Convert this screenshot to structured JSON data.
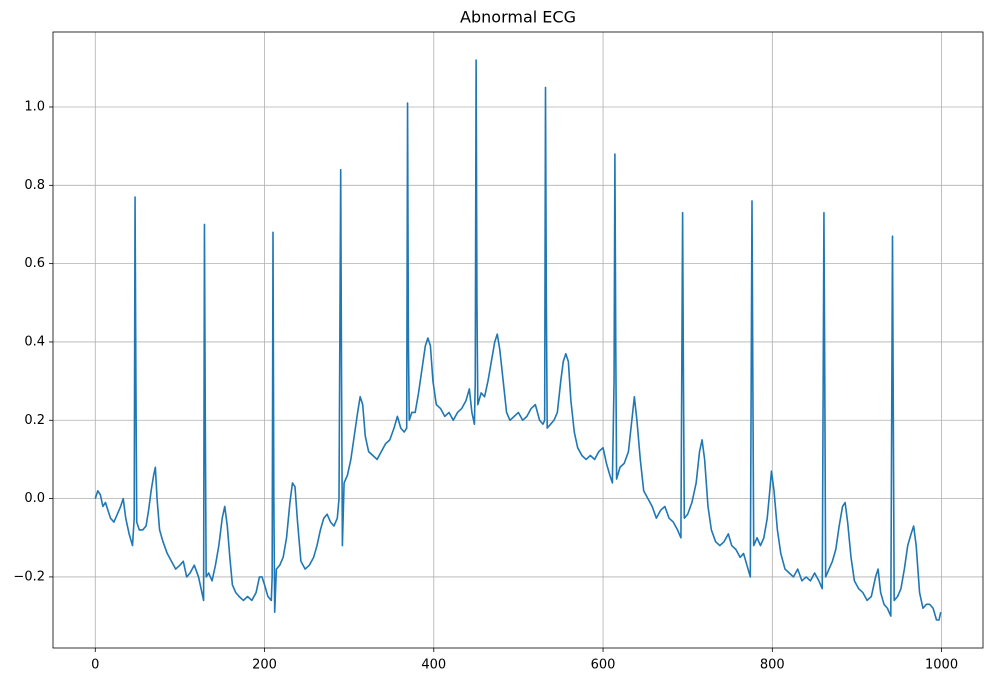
{
  "chart_data": {
    "type": "line",
    "title": "Abnormal ECG",
    "color": "#1f77b4",
    "grid": true,
    "xlim": [
      -49.95,
      1048.95
    ],
    "ylim": [
      -0.3815,
      1.1915
    ],
    "xticks": [
      0,
      200,
      400,
      600,
      800,
      1000
    ],
    "yticks": [
      {
        "value": -0.2,
        "label": "−0.2"
      },
      {
        "value": 0,
        "label": "0.0"
      },
      0.2,
      0.4,
      0.6,
      0.8,
      {
        "value": 1,
        "label": "1.0"
      }
    ],
    "x": [
      0,
      3,
      6,
      9,
      12,
      15,
      18,
      22,
      26,
      30,
      33,
      36,
      40,
      44,
      46,
      47,
      48,
      49,
      52,
      56,
      60,
      63,
      66,
      69,
      71,
      73,
      76,
      80,
      85,
      90,
      95,
      100,
      104,
      108,
      112,
      117,
      122,
      126,
      128,
      129,
      130,
      131,
      134,
      138,
      142,
      146,
      150,
      153,
      156,
      159,
      162,
      166,
      170,
      175,
      180,
      185,
      190,
      194,
      197,
      200,
      204,
      208,
      209,
      210,
      211,
      212,
      214,
      218,
      222,
      226,
      230,
      233,
      236,
      239,
      243,
      248,
      253,
      258,
      262,
      266,
      270,
      274,
      278,
      282,
      286,
      288,
      290,
      291,
      292,
      294,
      298,
      302,
      306,
      310,
      313,
      316,
      319,
      323,
      328,
      333,
      338,
      343,
      348,
      353,
      357,
      361,
      365,
      368,
      369,
      370,
      371,
      374,
      378,
      382,
      386,
      390,
      393,
      396,
      399,
      403,
      408,
      413,
      418,
      423,
      428,
      433,
      438,
      442,
      445,
      448,
      449,
      450,
      451,
      452,
      456,
      460,
      464,
      468,
      472,
      475,
      478,
      482,
      486,
      490,
      495,
      500,
      505,
      510,
      515,
      520,
      525,
      529,
      531,
      532,
      533,
      534,
      538,
      542,
      546,
      550,
      553,
      556,
      559,
      562,
      566,
      570,
      575,
      580,
      585,
      590,
      595,
      600,
      604,
      608,
      611,
      613,
      614,
      615,
      616,
      620,
      625,
      630,
      634,
      637,
      640,
      644,
      648,
      653,
      658,
      663,
      668,
      673,
      678,
      683,
      688,
      692,
      694,
      695,
      696,
      700,
      705,
      710,
      714,
      717,
      720,
      724,
      728,
      733,
      738,
      743,
      748,
      752,
      757,
      762,
      766,
      770,
      774,
      776,
      777,
      778,
      782,
      786,
      790,
      794,
      797,
      799,
      802,
      806,
      810,
      815,
      820,
      825,
      830,
      835,
      840,
      845,
      850,
      855,
      859,
      861,
      862,
      863,
      867,
      871,
      875,
      879,
      883,
      886,
      889,
      893,
      897,
      902,
      907,
      912,
      917,
      922,
      925,
      928,
      932,
      936,
      940,
      942,
      943,
      944,
      948,
      952,
      956,
      960,
      964,
      967,
      970,
      974,
      978,
      982,
      986,
      990,
      994,
      997,
      999
    ],
    "values": [
      0.0,
      0.02,
      0.01,
      -0.02,
      -0.01,
      -0.03,
      -0.05,
      -0.06,
      -0.04,
      -0.02,
      0.0,
      -0.05,
      -0.09,
      -0.12,
      -0.05,
      0.77,
      0.3,
      -0.06,
      -0.08,
      -0.08,
      -0.07,
      -0.03,
      0.02,
      0.06,
      0.08,
      0.0,
      -0.08,
      -0.11,
      -0.14,
      -0.16,
      -0.18,
      -0.17,
      -0.16,
      -0.2,
      -0.19,
      -0.17,
      -0.2,
      -0.24,
      -0.26,
      0.7,
      0.2,
      -0.2,
      -0.19,
      -0.21,
      -0.17,
      -0.12,
      -0.05,
      -0.02,
      -0.07,
      -0.15,
      -0.22,
      -0.24,
      -0.25,
      -0.26,
      -0.25,
      -0.26,
      -0.24,
      -0.2,
      -0.2,
      -0.22,
      -0.25,
      -0.26,
      -0.2,
      0.68,
      0.0,
      -0.29,
      -0.18,
      -0.17,
      -0.15,
      -0.1,
      -0.01,
      0.04,
      0.03,
      -0.06,
      -0.16,
      -0.18,
      -0.17,
      -0.15,
      -0.12,
      -0.08,
      -0.05,
      -0.04,
      -0.06,
      -0.07,
      -0.05,
      0.0,
      0.84,
      0.3,
      -0.12,
      0.04,
      0.06,
      0.1,
      0.16,
      0.22,
      0.26,
      0.24,
      0.16,
      0.12,
      0.11,
      0.1,
      0.12,
      0.14,
      0.15,
      0.18,
      0.21,
      0.18,
      0.17,
      0.18,
      1.01,
      0.4,
      0.2,
      0.22,
      0.22,
      0.27,
      0.33,
      0.39,
      0.41,
      0.39,
      0.3,
      0.24,
      0.23,
      0.21,
      0.22,
      0.2,
      0.22,
      0.23,
      0.25,
      0.28,
      0.22,
      0.19,
      0.3,
      1.12,
      0.5,
      0.24,
      0.27,
      0.26,
      0.3,
      0.35,
      0.4,
      0.42,
      0.38,
      0.3,
      0.22,
      0.2,
      0.21,
      0.22,
      0.2,
      0.21,
      0.23,
      0.24,
      0.2,
      0.19,
      0.2,
      1.05,
      0.5,
      0.18,
      0.19,
      0.2,
      0.22,
      0.3,
      0.35,
      0.37,
      0.35,
      0.25,
      0.17,
      0.13,
      0.11,
      0.1,
      0.11,
      0.1,
      0.12,
      0.13,
      0.09,
      0.06,
      0.04,
      0.3,
      0.88,
      0.4,
      0.05,
      0.08,
      0.09,
      0.12,
      0.2,
      0.26,
      0.2,
      0.1,
      0.02,
      0.0,
      -0.02,
      -0.05,
      -0.03,
      -0.02,
      -0.05,
      -0.06,
      -0.08,
      -0.1,
      0.73,
      0.3,
      -0.05,
      -0.04,
      -0.01,
      0.04,
      0.12,
      0.15,
      0.1,
      -0.02,
      -0.08,
      -0.11,
      -0.12,
      -0.11,
      -0.09,
      -0.12,
      -0.13,
      -0.15,
      -0.14,
      -0.17,
      -0.2,
      0.76,
      0.3,
      -0.12,
      -0.1,
      -0.12,
      -0.1,
      -0.05,
      0.02,
      0.07,
      0.02,
      -0.08,
      -0.14,
      -0.18,
      -0.19,
      -0.2,
      -0.18,
      -0.21,
      -0.2,
      -0.21,
      -0.19,
      -0.21,
      -0.23,
      0.73,
      0.3,
      -0.2,
      -0.18,
      -0.16,
      -0.13,
      -0.07,
      -0.02,
      -0.01,
      -0.06,
      -0.15,
      -0.21,
      -0.23,
      -0.24,
      -0.26,
      -0.25,
      -0.2,
      -0.18,
      -0.24,
      -0.27,
      -0.28,
      -0.3,
      0.67,
      0.2,
      -0.26,
      -0.25,
      -0.23,
      -0.18,
      -0.12,
      -0.09,
      -0.07,
      -0.12,
      -0.24,
      -0.28,
      -0.27,
      -0.27,
      -0.28,
      -0.31,
      -0.31,
      -0.29
    ]
  }
}
